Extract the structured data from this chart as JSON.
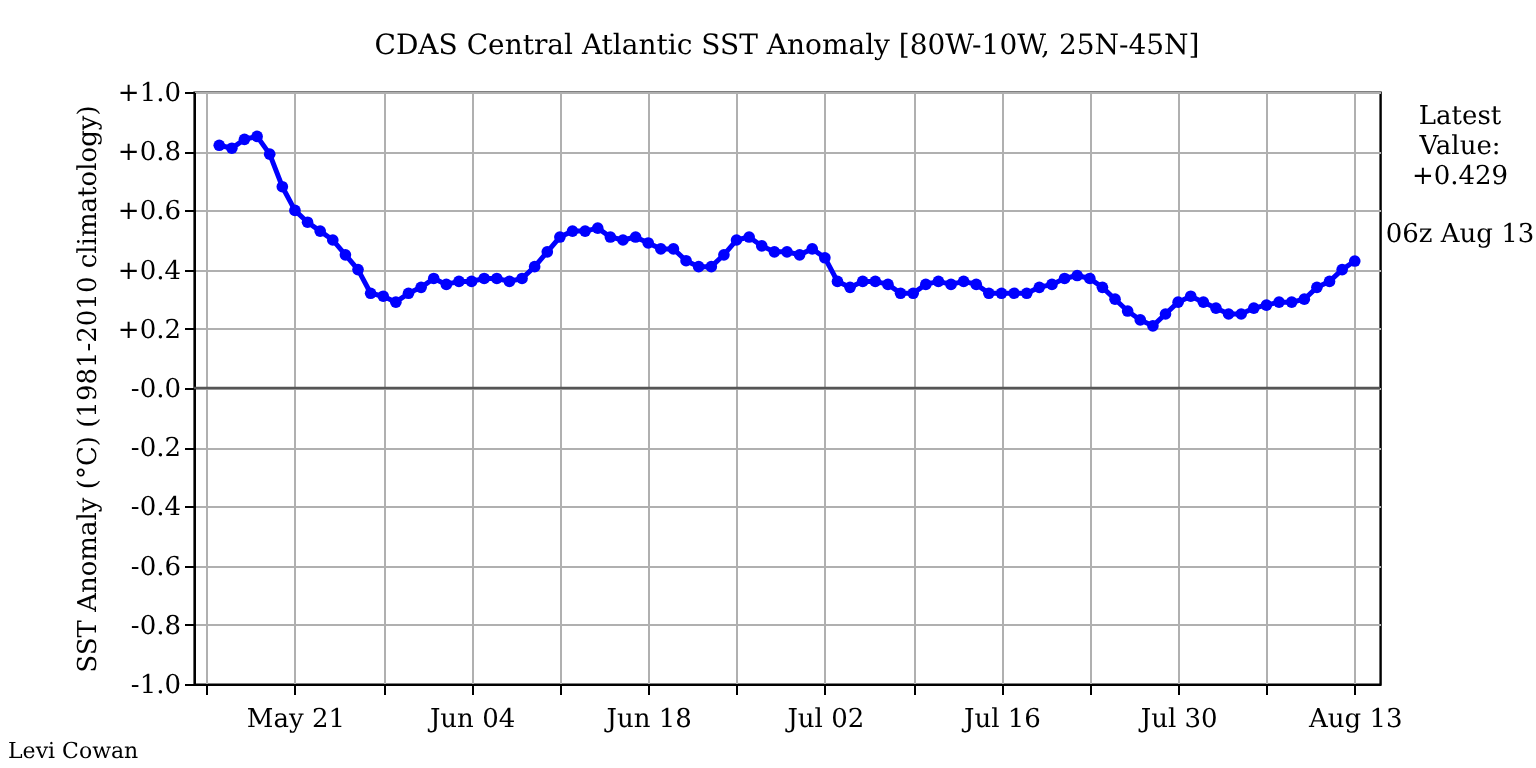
{
  "chart_data": {
    "type": "line",
    "title": "CDAS Central Atlantic SST Anomaly [80W-10W, 25N-45N]",
    "ylabel": "SST Anomaly (°C) (1981-2010 climatology)",
    "x": [
      "--05-15",
      "--05-16",
      "--05-17",
      "--05-18",
      "--05-19",
      "--05-20",
      "--05-21",
      "--05-22",
      "--05-23",
      "--05-24",
      "--05-25",
      "--05-26",
      "--05-27",
      "--05-28",
      "--05-29",
      "--05-30",
      "--05-31",
      "--06-01",
      "--06-02",
      "--06-03",
      "--06-04",
      "--06-05",
      "--06-06",
      "--06-07",
      "--06-08",
      "--06-09",
      "--06-10",
      "--06-11",
      "--06-12",
      "--06-13",
      "--06-14",
      "--06-15",
      "--06-16",
      "--06-17",
      "--06-18",
      "--06-19",
      "--06-20",
      "--06-21",
      "--06-22",
      "--06-23",
      "--06-24",
      "--06-25",
      "--06-26",
      "--06-27",
      "--06-28",
      "--06-29",
      "--06-30",
      "--07-01",
      "--07-02",
      "--07-03",
      "--07-04",
      "--07-05",
      "--07-06",
      "--07-07",
      "--07-08",
      "--07-09",
      "--07-10",
      "--07-11",
      "--07-12",
      "--07-13",
      "--07-14",
      "--07-15",
      "--07-16",
      "--07-17",
      "--07-18",
      "--07-19",
      "--07-20",
      "--07-21",
      "--07-22",
      "--07-23",
      "--07-24",
      "--07-25",
      "--07-26",
      "--07-27",
      "--07-28",
      "--07-29",
      "--07-30",
      "--07-31",
      "--08-01",
      "--08-02",
      "--08-03",
      "--08-04",
      "--08-05",
      "--08-06",
      "--08-07",
      "--08-08",
      "--08-09",
      "--08-10",
      "--08-11",
      "--08-12",
      "--08-13"
    ],
    "series": [
      {
        "color": "#0000ff",
        "values": [
          0.82,
          0.81,
          0.84,
          0.85,
          0.79,
          0.68,
          0.6,
          0.56,
          0.53,
          0.5,
          0.45,
          0.4,
          0.32,
          0.31,
          0.29,
          0.32,
          0.34,
          0.37,
          0.35,
          0.36,
          0.36,
          0.37,
          0.37,
          0.36,
          0.37,
          0.41,
          0.46,
          0.51,
          0.53,
          0.53,
          0.54,
          0.51,
          0.5,
          0.51,
          0.49,
          0.47,
          0.47,
          0.43,
          0.41,
          0.41,
          0.45,
          0.5,
          0.51,
          0.48,
          0.46,
          0.46,
          0.45,
          0.47,
          0.44,
          0.36,
          0.34,
          0.36,
          0.36,
          0.35,
          0.32,
          0.32,
          0.35,
          0.36,
          0.35,
          0.36,
          0.35,
          0.32,
          0.32,
          0.32,
          0.32,
          0.34,
          0.35,
          0.37,
          0.38,
          0.37,
          0.34,
          0.3,
          0.26,
          0.23,
          0.21,
          0.25,
          0.29,
          0.31,
          0.29,
          0.27,
          0.25,
          0.25,
          0.27,
          0.28,
          0.29,
          0.29,
          0.3,
          0.34,
          0.36,
          0.4,
          0.429
        ]
      }
    ],
    "xlim": [
      "--05-13",
      "--08-15"
    ],
    "xticks": [
      {
        "value": "--05-14",
        "label": null
      },
      {
        "value": "--05-21",
        "label": "May 21"
      },
      {
        "value": "--05-28",
        "label": null
      },
      {
        "value": "--06-04",
        "label": "Jun 04"
      },
      {
        "value": "--06-11",
        "label": null
      },
      {
        "value": "--06-18",
        "label": "Jun 18"
      },
      {
        "value": "--06-25",
        "label": null
      },
      {
        "value": "--07-02",
        "label": "Jul 02"
      },
      {
        "value": "--07-09",
        "label": null
      },
      {
        "value": "--07-16",
        "label": "Jul 16"
      },
      {
        "value": "--07-23",
        "label": null
      },
      {
        "value": "--07-30",
        "label": "Jul 30"
      },
      {
        "value": "--08-06",
        "label": null
      },
      {
        "value": "--08-13",
        "label": "Aug 13"
      }
    ],
    "ylim": [
      -1.0,
      1.0
    ],
    "yticks": [
      {
        "value": 1.0,
        "label": "+1.0"
      },
      {
        "value": 0.8,
        "label": "+0.8"
      },
      {
        "value": 0.6,
        "label": "+0.6"
      },
      {
        "value": 0.4,
        "label": "+0.4"
      },
      {
        "value": 0.2,
        "label": "+0.2"
      },
      {
        "value": 0,
        "label": "-0.0"
      },
      {
        "value": -0.2,
        "label": "-0.2"
      },
      {
        "value": -0.4,
        "label": "-0.4"
      },
      {
        "value": -0.6,
        "label": "-0.6"
      },
      {
        "value": -0.8,
        "label": "-0.8"
      },
      {
        "value": -1.0,
        "label": "-1.0"
      }
    ],
    "grid": true,
    "marker": "circle",
    "line_style": "solid",
    "ref_lines": [
      {
        "axis": "y",
        "value": 0,
        "color": "#555555"
      }
    ],
    "annotations": [
      "Latest\nValue:\n+0.429",
      "06z Aug 13",
      "Levi Cowan"
    ]
  }
}
